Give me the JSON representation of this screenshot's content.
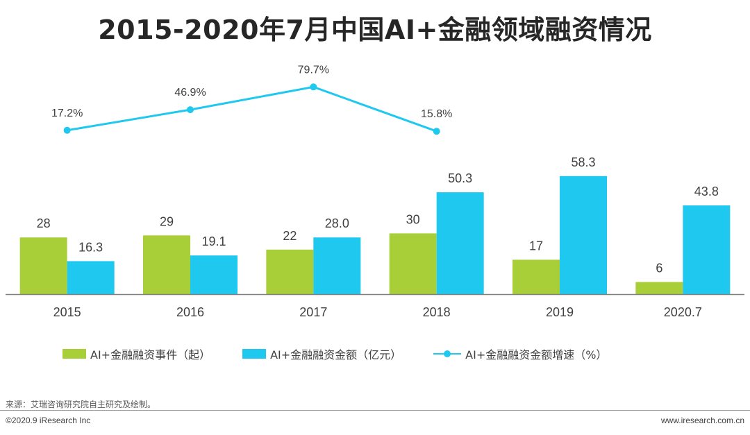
{
  "title": "2015-2020年7月中国AI+金融领域融资情况",
  "colors": {
    "events": "#a9cf38",
    "amount": "#1ec8ef",
    "growth": "#1ec8ef",
    "axis": "#7f7f7f",
    "text": "#404040"
  },
  "chart_data": {
    "type": "bar",
    "categories": [
      "2015",
      "2016",
      "2017",
      "2018",
      "2019",
      "2020.7"
    ],
    "series": [
      {
        "name": "AI+金融融资事件（起）",
        "type": "bar",
        "values": [
          28,
          29,
          22,
          30,
          17,
          6
        ],
        "labels": [
          "28",
          "29",
          "22",
          "30",
          "17",
          "6"
        ]
      },
      {
        "name": "AI+金融融资金额（亿元）",
        "type": "bar",
        "values": [
          16.3,
          19.1,
          28.0,
          50.3,
          58.3,
          43.8
        ],
        "labels": [
          "16.3",
          "19.1",
          "28.0",
          "50.3",
          "58.3",
          "43.8"
        ]
      },
      {
        "name": "AI+金融融资金额增速（%）",
        "type": "line",
        "values": [
          17.2,
          46.9,
          79.7,
          15.8,
          null,
          null
        ],
        "labels": [
          "17.2%",
          "46.9%",
          "79.7%",
          "15.8%",
          "",
          ""
        ]
      }
    ],
    "ylim": [
      0,
      65
    ],
    "growth_ylim": [
      0,
      100
    ],
    "xlabel": "",
    "ylabel": "",
    "legend_position": "bottom"
  },
  "legend": {
    "events": "AI+金融融资事件（起）",
    "amount": "AI+金融融资金额（亿元）",
    "growth": "AI+金融融资金额增速（%）"
  },
  "footer": {
    "source": "来源：艾瑞咨询研究院自主研究及绘制。",
    "copyright": "©2020.9 iResearch Inc",
    "website": "www.iresearch.com.cn"
  }
}
